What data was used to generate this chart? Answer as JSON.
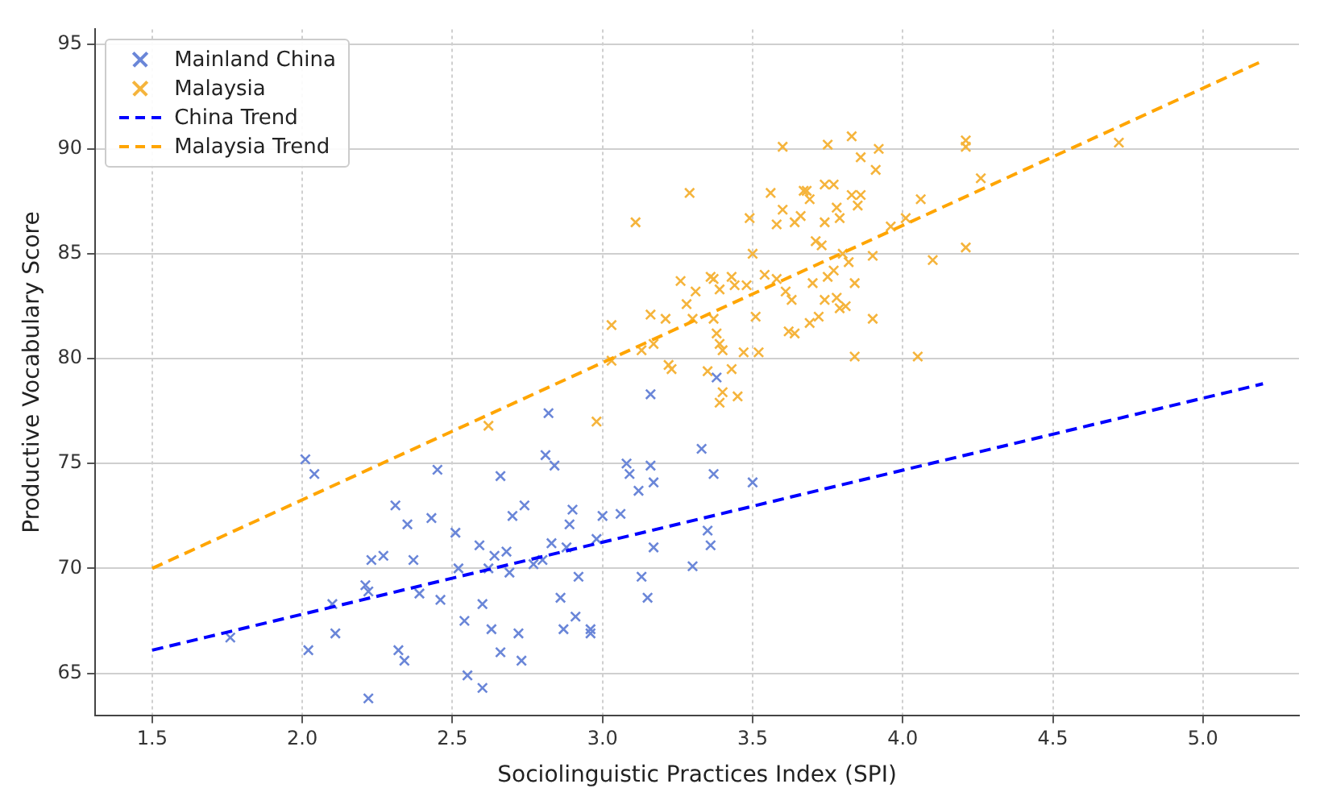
{
  "chart_data": {
    "type": "scatter",
    "xlabel": "Sociolinguistic Practices Index (SPI)",
    "ylabel": "Productive Vocabulary Score",
    "xlim": [
      1.31,
      5.32
    ],
    "ylim": [
      63,
      95.7
    ],
    "xticks": [
      1.5,
      {
        "value": 2,
        "label": "2.0"
      },
      2.5,
      {
        "value": 3,
        "label": "3.0"
      },
      3.5,
      {
        "value": 4,
        "label": "4.0"
      },
      4.5,
      {
        "value": 5,
        "label": "5.0"
      }
    ],
    "yticks": [
      65,
      70,
      75,
      80,
      85,
      90,
      95
    ],
    "grid": true,
    "legend": "top left",
    "series": [
      {
        "name": "Mainland China",
        "type": "scatter",
        "marker": "cross",
        "color": "#6a86d8",
        "x": [
          1.76,
          2.01,
          2.04,
          2.02,
          2.1,
          2.11,
          2.21,
          2.22,
          2.23,
          2.22,
          2.27,
          2.31,
          2.32,
          2.34,
          2.35,
          2.37,
          2.39,
          2.43,
          2.45,
          2.46,
          2.51,
          2.52,
          2.54,
          2.55,
          2.59,
          2.6,
          2.6,
          2.62,
          2.63,
          2.64,
          2.66,
          2.66,
          2.68,
          2.69,
          2.7,
          2.72,
          2.73,
          2.74,
          2.77,
          2.8,
          2.81,
          2.82,
          2.83,
          2.84,
          2.86,
          2.87,
          2.88,
          2.89,
          2.9,
          2.91,
          2.92,
          2.96,
          2.96,
          2.98,
          3.0,
          3.06,
          3.08,
          3.09,
          3.12,
          3.13,
          3.16,
          3.15,
          3.16,
          3.17,
          3.17,
          3.33,
          3.35,
          3.36,
          3.37,
          3.3,
          3.38,
          3.5
        ],
        "values": [
          66.7,
          75.2,
          74.5,
          66.1,
          68.3,
          66.9,
          69.2,
          68.9,
          70.4,
          63.8,
          70.6,
          73.0,
          66.1,
          65.6,
          72.1,
          70.4,
          68.8,
          72.4,
          74.7,
          68.5,
          71.7,
          70.0,
          67.5,
          64.9,
          71.1,
          68.3,
          64.3,
          70.0,
          67.1,
          70.6,
          74.4,
          66.0,
          70.8,
          69.8,
          72.5,
          66.9,
          65.6,
          73.0,
          70.2,
          70.4,
          75.4,
          77.4,
          71.2,
          74.9,
          68.6,
          67.1,
          71.0,
          72.1,
          72.8,
          67.7,
          69.6,
          67.1,
          66.9,
          71.4,
          72.5,
          72.6,
          75.0,
          74.5,
          73.7,
          69.6,
          78.3,
          68.6,
          74.9,
          74.1,
          71.0,
          75.7,
          71.8,
          71.1,
          74.5,
          70.1,
          79.1,
          74.1
        ]
      },
      {
        "name": "Malaysia",
        "type": "scatter",
        "marker": "cross",
        "color": "#f5b43c",
        "x": [
          2.62,
          2.98,
          3.03,
          3.03,
          3.11,
          3.29,
          3.26,
          3.31,
          3.28,
          3.21,
          3.16,
          3.13,
          3.17,
          3.22,
          3.23,
          3.3,
          3.36,
          3.37,
          3.39,
          3.43,
          3.44,
          3.38,
          3.37,
          3.39,
          3.4,
          3.35,
          3.43,
          3.4,
          3.45,
          3.39,
          3.47,
          3.48,
          3.5,
          3.49,
          3.52,
          3.51,
          3.54,
          3.58,
          3.61,
          3.63,
          3.62,
          3.64,
          3.6,
          3.56,
          3.6,
          3.58,
          3.64,
          3.67,
          3.75,
          3.83,
          3.92,
          3.86,
          3.91,
          3.68,
          3.74,
          3.77,
          3.69,
          3.83,
          3.86,
          3.85,
          3.78,
          3.79,
          3.66,
          3.74,
          3.96,
          4.01,
          4.06,
          4.26,
          4.21,
          4.21,
          4.72,
          3.71,
          3.73,
          3.8,
          3.82,
          3.9,
          4.1,
          4.21,
          3.7,
          3.75,
          3.77,
          3.84,
          3.74,
          3.78,
          3.79,
          3.81,
          3.72,
          3.69,
          3.9,
          3.84,
          4.05
        ],
        "values": [
          76.8,
          77.0,
          79.9,
          81.6,
          86.5,
          87.9,
          83.7,
          83.2,
          82.6,
          81.9,
          82.1,
          80.4,
          80.7,
          79.7,
          79.5,
          81.9,
          83.9,
          83.8,
          83.3,
          83.9,
          83.5,
          81.2,
          81.9,
          80.7,
          80.4,
          79.4,
          79.5,
          78.4,
          78.2,
          77.9,
          80.3,
          83.5,
          85.0,
          86.7,
          80.3,
          82.0,
          84.0,
          83.8,
          83.2,
          82.8,
          81.3,
          81.2,
          90.1,
          87.9,
          87.1,
          86.4,
          86.5,
          88.0,
          90.2,
          90.6,
          90.0,
          89.6,
          89.0,
          88.0,
          88.3,
          88.3,
          87.6,
          87.8,
          87.8,
          87.3,
          87.2,
          86.7,
          86.8,
          86.5,
          86.3,
          86.7,
          87.6,
          88.6,
          90.4,
          90.1,
          90.3,
          85.6,
          85.4,
          85.0,
          84.6,
          84.9,
          84.7,
          85.3,
          83.6,
          83.9,
          84.2,
          83.6,
          82.8,
          82.9,
          82.4,
          82.5,
          82.0,
          81.7,
          81.9,
          80.1,
          80.1
        ]
      },
      {
        "name": "China Trend",
        "type": "line",
        "line_style": "dashed",
        "marker": "none",
        "color": "#0000ff",
        "x": [
          1.5,
          5.2
        ],
        "values": [
          66.1,
          78.8
        ]
      },
      {
        "name": "Malaysia Trend",
        "type": "line",
        "line_style": "dashed",
        "marker": "none",
        "color": "#ffa500",
        "x": [
          1.5,
          5.2
        ],
        "values": [
          70.0,
          94.2
        ]
      }
    ]
  }
}
